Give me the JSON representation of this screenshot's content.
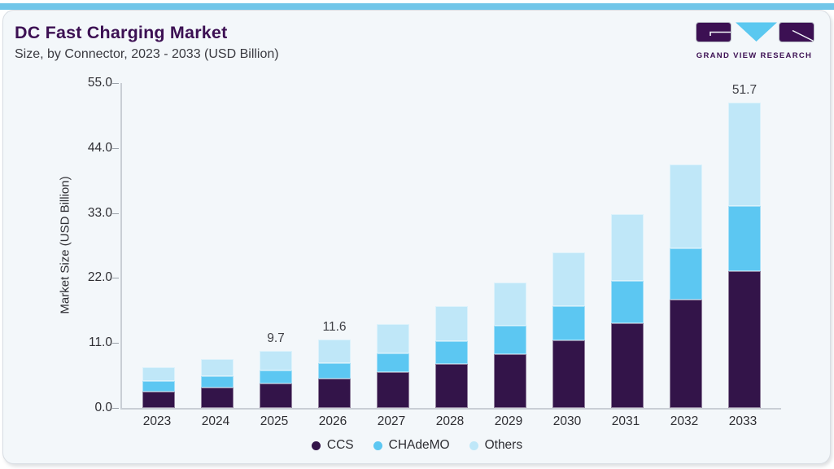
{
  "page": {
    "background": "#ffffff",
    "card_background": "#f3f7fa",
    "card_border": "#d8dde3",
    "accent_bar_color": "#71c6e9"
  },
  "header": {
    "title": "DC Fast Charging Market",
    "subtitle": "Size, by Connector, 2023 - 2033 (USD Billion)",
    "title_color": "#3c1053"
  },
  "logo": {
    "text": "GRAND VIEW RESEARCH",
    "purple": "#3c1053",
    "blue": "#5bc8f0"
  },
  "chart_data": {
    "type": "bar",
    "stacked": true,
    "title": "DC Fast Charging Market Size, by Connector, 2023 - 2033 (USD Billion)",
    "xlabel": "",
    "ylabel": "Market Size (USD Billion)",
    "ylim": [
      0,
      55
    ],
    "ytick_labels": [
      "55.0",
      "44.0",
      "33.0",
      "22.0",
      "11.0",
      "0.0"
    ],
    "grid": false,
    "legend_position": "bottom",
    "categories": [
      "2023",
      "2024",
      "2025",
      "2026",
      "2027",
      "2028",
      "2029",
      "2030",
      "2031",
      "2032",
      "2033"
    ],
    "series": [
      {
        "name": "CCS",
        "color": "#331449",
        "values": [
          2.8,
          3.5,
          4.1,
          4.9,
          6.0,
          7.5,
          9.1,
          11.5,
          14.4,
          18.3,
          23.2
        ]
      },
      {
        "name": "CHAdeMO",
        "color": "#5cc7f2",
        "values": [
          1.7,
          1.9,
          2.3,
          2.7,
          3.2,
          3.8,
          4.8,
          5.8,
          7.1,
          8.7,
          11.0
        ]
      },
      {
        "name": "Others",
        "color": "#bfe7f8",
        "values": [
          2.4,
          2.9,
          3.3,
          4.0,
          5.0,
          6.0,
          7.4,
          9.0,
          11.3,
          14.2,
          17.5
        ]
      }
    ],
    "totals": [
      6.9,
      8.3,
      9.7,
      11.6,
      14.2,
      17.3,
      21.3,
      26.3,
      32.8,
      41.2,
      51.7
    ],
    "total_labels": [
      null,
      null,
      "9.7",
      "11.6",
      null,
      null,
      null,
      null,
      null,
      null,
      "51.7"
    ]
  }
}
